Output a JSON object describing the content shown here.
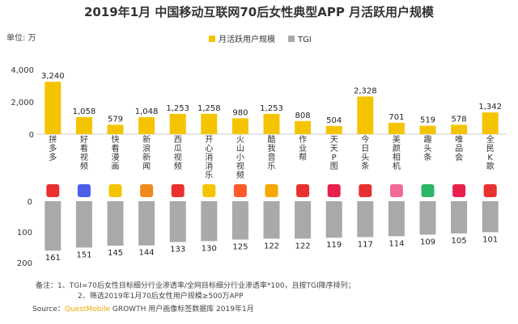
{
  "chart_data": {
    "type": "bar",
    "title": "2019年1月 中国移动互联网70后女性典型APP 月活跃用户规模",
    "unit_label": "单位: 万",
    "legend": [
      "月活跃用户规模",
      "TGI"
    ],
    "categories": [
      "拼多多",
      "好看视频",
      "快看漫画",
      "新浪新闻",
      "西瓜视频",
      "开心消消乐",
      "火山小视频",
      "酷我音乐",
      "作业帮",
      "天天P图",
      "今日头条",
      "美颜相机",
      "趣头条",
      "唯品会",
      "全民K歌"
    ],
    "series": [
      {
        "name": "月活跃用户规模",
        "values": [
          3240,
          1058,
          579,
          1048,
          1253,
          1258,
          980,
          1253,
          808,
          504,
          2328,
          701,
          519,
          578,
          1342
        ]
      },
      {
        "name": "TGI",
        "values": [
          161,
          151,
          145,
          144,
          133,
          130,
          125,
          122,
          122,
          119,
          117,
          114,
          109,
          105,
          101
        ]
      }
    ],
    "value_labels": [
      "3,240",
      "1,058",
      "579",
      "1,048",
      "1,253",
      "1,258",
      "980",
      "1,253",
      "808",
      "504",
      "2,328",
      "701",
      "519",
      "578",
      "1,342"
    ],
    "y_top_ticks": [
      "4,000",
      "2,000",
      "0"
    ],
    "y_top_lim": [
      0,
      4000
    ],
    "y_bottom_ticks": [
      "0",
      "100",
      "200"
    ],
    "y_bottom_lim": [
      0,
      200
    ],
    "legend_position": "top-center",
    "colors": {
      "mau": "#f5c400",
      "tgi": "#a9a9a9"
    },
    "notes": [
      "备注：1、TGI=70后女性目标细分行业渗透率/全网目标细分行业渗透率*100，且按TGI降序排列；",
      "2、筛选2019年1月70后女性用户规模≥500万APP"
    ],
    "source_prefix": "Source：",
    "source_brand": "QuestMobile",
    "source_suffix": " GROWTH 用户画像标签数据库 2019年1月"
  },
  "icon_colors": [
    "#e8312e",
    "#4a5ee8",
    "#f5c400",
    "#f08a1e",
    "#e8312e",
    "#f5c400",
    "#ff5a2a",
    "#f5a800",
    "#e8312e",
    "#e8204e",
    "#e8312e",
    "#f06a9a",
    "#2db56a",
    "#e8204e",
    "#e8312e"
  ]
}
